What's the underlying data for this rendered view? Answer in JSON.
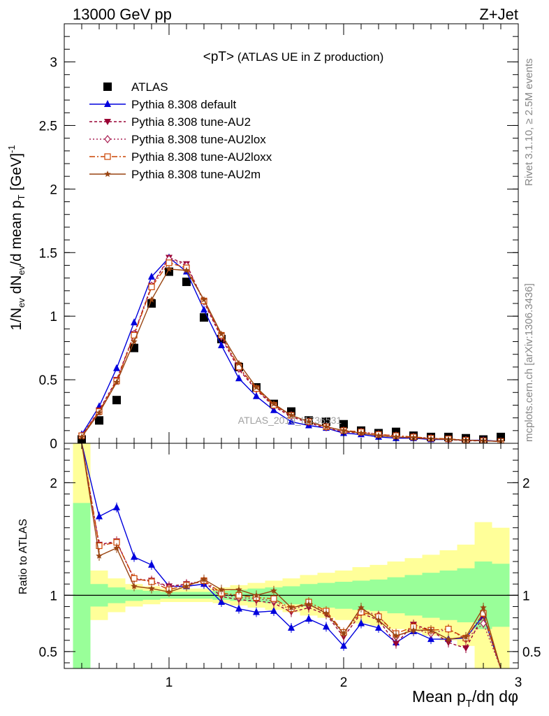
{
  "header": {
    "left": "13000 GeV pp",
    "right": "Z+Jet"
  },
  "side_labels": {
    "rivet": "Rivet 3.1.10, ≥ 2.5M events",
    "mcplots": "mcplots.cern.ch [arXiv:1306.3436]"
  },
  "watermark": "ATLAS_2019_I1736531",
  "colors": {
    "atlas": "#000000",
    "default": "#0000dd",
    "au2": "#990033",
    "au2lox": "#aa2255",
    "au2loxx": "#cc4400",
    "au2m": "#994411",
    "band_inner": "#99ff99",
    "band_outer": "#ffff99"
  },
  "chart_data": [
    {
      "id": "main",
      "type": "line",
      "title": "<pT> (ATLAS UE in Z production)",
      "title_main": "<pT>",
      "title_sub": "(ATLAS UE in Z production)",
      "ylabel": "1/N_ev dN_ev/d mean p_T [GeV]^-1",
      "ylabel_parts": {
        "a": "1/N",
        "a_sub": "ev",
        "b": " dN",
        "b_sub": "ev",
        "c": "/d mean p",
        "c_sub": "T",
        "d": " [GeV]",
        "d_sup": "-1"
      },
      "xlim": [
        0.4,
        3.0
      ],
      "ylim": [
        0,
        3.3
      ],
      "yticks": [
        0,
        0.5,
        1,
        1.5,
        2,
        2.5,
        3
      ],
      "ytick_labels": [
        "0",
        "0.5",
        "1",
        "1.5",
        "2",
        "2.5",
        "3"
      ],
      "x": [
        0.5,
        0.6,
        0.7,
        0.8,
        0.9,
        1.0,
        1.1,
        1.2,
        1.3,
        1.4,
        1.5,
        1.6,
        1.7,
        1.8,
        1.9,
        2.0,
        2.1,
        2.2,
        2.3,
        2.4,
        2.5,
        2.6,
        2.7,
        2.8,
        2.9
      ],
      "legend_position": "top-left",
      "series": [
        {
          "key": "atlas",
          "name": "ATLAS",
          "marker": "square",
          "values": [
            0.03,
            0.18,
            0.34,
            0.75,
            1.1,
            1.35,
            1.27,
            0.99,
            0.82,
            0.6,
            0.44,
            0.31,
            0.25,
            0.18,
            0.17,
            0.15,
            0.1,
            0.08,
            0.09,
            0.06,
            0.05,
            0.05,
            0.04,
            0.03,
            0.05
          ]
        },
        {
          "key": "default",
          "name": "Pythia 8.308 default",
          "marker": "triangle-up",
          "dash": "none",
          "values": [
            0.07,
            0.29,
            0.59,
            0.95,
            1.31,
            1.46,
            1.35,
            1.05,
            0.77,
            0.51,
            0.37,
            0.26,
            0.17,
            0.14,
            0.12,
            0.08,
            0.07,
            0.05,
            0.04,
            0.04,
            0.03,
            0.03,
            0.025,
            0.024,
            0.015
          ]
        },
        {
          "key": "au2",
          "name": "Pythia 8.308 tune-AU2",
          "marker": "triangle-down",
          "dash": "4 3",
          "values": [
            0.06,
            0.26,
            0.5,
            0.86,
            1.24,
            1.46,
            1.41,
            1.11,
            0.83,
            0.58,
            0.42,
            0.29,
            0.21,
            0.16,
            0.12,
            0.09,
            0.08,
            0.06,
            0.05,
            0.04,
            0.035,
            0.03,
            0.02,
            0.02,
            0.015
          ]
        },
        {
          "key": "au2lox",
          "name": "Pythia 8.308 tune-AU2lox",
          "marker": "diamond-open",
          "dash": "2 3",
          "values": [
            0.06,
            0.25,
            0.49,
            0.86,
            1.24,
            1.45,
            1.4,
            1.12,
            0.84,
            0.59,
            0.43,
            0.3,
            0.22,
            0.17,
            0.13,
            0.1,
            0.09,
            0.07,
            0.06,
            0.05,
            0.04,
            0.03,
            0.025,
            0.02,
            0.015
          ]
        },
        {
          "key": "au2loxx",
          "name": "Pythia 8.308 tune-AU2loxx",
          "marker": "square-open",
          "dash": "8 3 2 3",
          "values": [
            0.06,
            0.25,
            0.49,
            0.85,
            1.23,
            1.42,
            1.38,
            1.12,
            0.85,
            0.6,
            0.43,
            0.3,
            0.22,
            0.17,
            0.13,
            0.1,
            0.09,
            0.07,
            0.06,
            0.05,
            0.04,
            0.035,
            0.025,
            0.02,
            0.015
          ]
        },
        {
          "key": "au2m",
          "name": "Pythia 8.308 tune-AU2m",
          "marker": "star",
          "dash": "none",
          "values": [
            0.05,
            0.24,
            0.48,
            0.8,
            1.13,
            1.37,
            1.36,
            1.13,
            0.86,
            0.63,
            0.44,
            0.31,
            0.22,
            0.17,
            0.13,
            0.1,
            0.08,
            0.06,
            0.05,
            0.045,
            0.035,
            0.03,
            0.025,
            0.02,
            0.015
          ]
        }
      ]
    },
    {
      "id": "ratio",
      "type": "line",
      "ylabel": "Ratio to ATLAS",
      "xlabel": "Mean p_T/dη dφ",
      "xlabel_parts": {
        "a": "Mean p",
        "a_sub": "T",
        "b": "/dη dφ"
      },
      "xlim": [
        0.4,
        3.0
      ],
      "ylim": [
        0.35,
        2.35
      ],
      "xticks": [
        1,
        2,
        3
      ],
      "xtick_labels": [
        "1",
        "2",
        "3"
      ],
      "yticks": [
        0.5,
        1,
        2
      ],
      "ytick_labels": [
        "0.5",
        "1",
        "2"
      ],
      "reference_line": 1,
      "bands": {
        "x_edges": [
          0.45,
          0.55,
          0.65,
          0.75,
          0.85,
          0.95,
          1.05,
          1.15,
          1.25,
          1.35,
          1.45,
          1.55,
          1.65,
          1.75,
          1.85,
          1.95,
          2.05,
          2.15,
          2.25,
          2.35,
          2.45,
          2.55,
          2.65,
          2.75,
          2.85,
          2.95
        ],
        "inner_low": [
          0.35,
          0.9,
          0.93,
          0.95,
          0.96,
          0.97,
          0.97,
          0.97,
          0.96,
          0.95,
          0.94,
          0.93,
          0.92,
          0.9,
          0.89,
          0.88,
          0.87,
          0.86,
          0.84,
          0.82,
          0.8,
          0.78,
          0.76,
          0.7,
          0.72
        ],
        "inner_high": [
          1.82,
          1.1,
          1.07,
          1.05,
          1.04,
          1.03,
          1.03,
          1.03,
          1.04,
          1.05,
          1.06,
          1.07,
          1.08,
          1.1,
          1.11,
          1.12,
          1.13,
          1.14,
          1.16,
          1.18,
          1.2,
          1.22,
          1.24,
          1.3,
          1.28
        ],
        "outer_low": [
          0.35,
          0.78,
          0.85,
          0.9,
          0.92,
          0.94,
          0.94,
          0.94,
          0.93,
          0.91,
          0.89,
          0.87,
          0.85,
          0.82,
          0.8,
          0.78,
          0.75,
          0.73,
          0.7,
          0.67,
          0.64,
          0.6,
          0.55,
          0.35,
          0.35
        ],
        "outer_high": [
          2.35,
          1.22,
          1.15,
          1.1,
          1.08,
          1.06,
          1.06,
          1.06,
          1.07,
          1.09,
          1.11,
          1.13,
          1.15,
          1.18,
          1.2,
          1.22,
          1.25,
          1.27,
          1.3,
          1.33,
          1.36,
          1.4,
          1.45,
          1.65,
          1.6
        ]
      },
      "series": [
        {
          "key": "default",
          "name": "Pythia 8.308 default",
          "marker": "triangle-up",
          "dash": "none",
          "values": [
            2.35,
            1.7,
            1.78,
            1.34,
            1.27,
            1.08,
            1.08,
            1.1,
            0.94,
            0.88,
            0.85,
            0.86,
            0.71,
            0.79,
            0.72,
            0.55,
            0.75,
            0.71,
            0.58,
            0.68,
            0.61,
            0.61,
            0.62,
            0.82,
            0.3
          ]
        },
        {
          "key": "au2",
          "name": "Pythia 8.308 tune-AU2",
          "marker": "triangle-down",
          "dash": "4 3",
          "values": [
            2.35,
            1.45,
            1.48,
            1.14,
            1.13,
            1.08,
            1.1,
            1.12,
            0.99,
            0.96,
            0.95,
            0.93,
            0.85,
            0.89,
            0.83,
            0.63,
            0.84,
            0.78,
            0.57,
            0.74,
            0.69,
            0.58,
            0.53,
            0.82,
            0.3
          ]
        },
        {
          "key": "au2lox",
          "name": "Pythia 8.308 tune-AU2lox",
          "marker": "diamond-open",
          "dash": "2 3",
          "values": [
            2.35,
            1.44,
            1.47,
            1.15,
            1.13,
            1.07,
            1.1,
            1.13,
            1.01,
            0.98,
            0.97,
            0.95,
            0.87,
            0.92,
            0.85,
            0.66,
            0.87,
            0.82,
            0.63,
            0.7,
            0.66,
            0.7,
            0.61,
            0.75,
            0.3
          ]
        },
        {
          "key": "au2loxx",
          "name": "Pythia 8.308 tune-AU2loxx",
          "marker": "square-open",
          "dash": "8 3 2 3",
          "values": [
            2.35,
            1.44,
            1.47,
            1.15,
            1.12,
            1.05,
            1.09,
            1.13,
            1.02,
            1.0,
            0.98,
            0.97,
            0.88,
            0.94,
            0.86,
            0.67,
            0.85,
            0.81,
            0.66,
            0.72,
            0.69,
            0.7,
            0.62,
            0.84,
            0.3
          ]
        },
        {
          "key": "au2m",
          "name": "Pythia 8.308 tune-AU2m",
          "marker": "star",
          "dash": "none",
          "values": [
            2.35,
            1.35,
            1.42,
            1.08,
            1.06,
            1.03,
            1.08,
            1.14,
            1.05,
            1.05,
            1.0,
            1.04,
            0.89,
            0.92,
            0.84,
            0.66,
            0.89,
            0.78,
            0.64,
            0.69,
            0.69,
            0.61,
            0.63,
            0.89,
            0.3
          ]
        }
      ]
    }
  ]
}
